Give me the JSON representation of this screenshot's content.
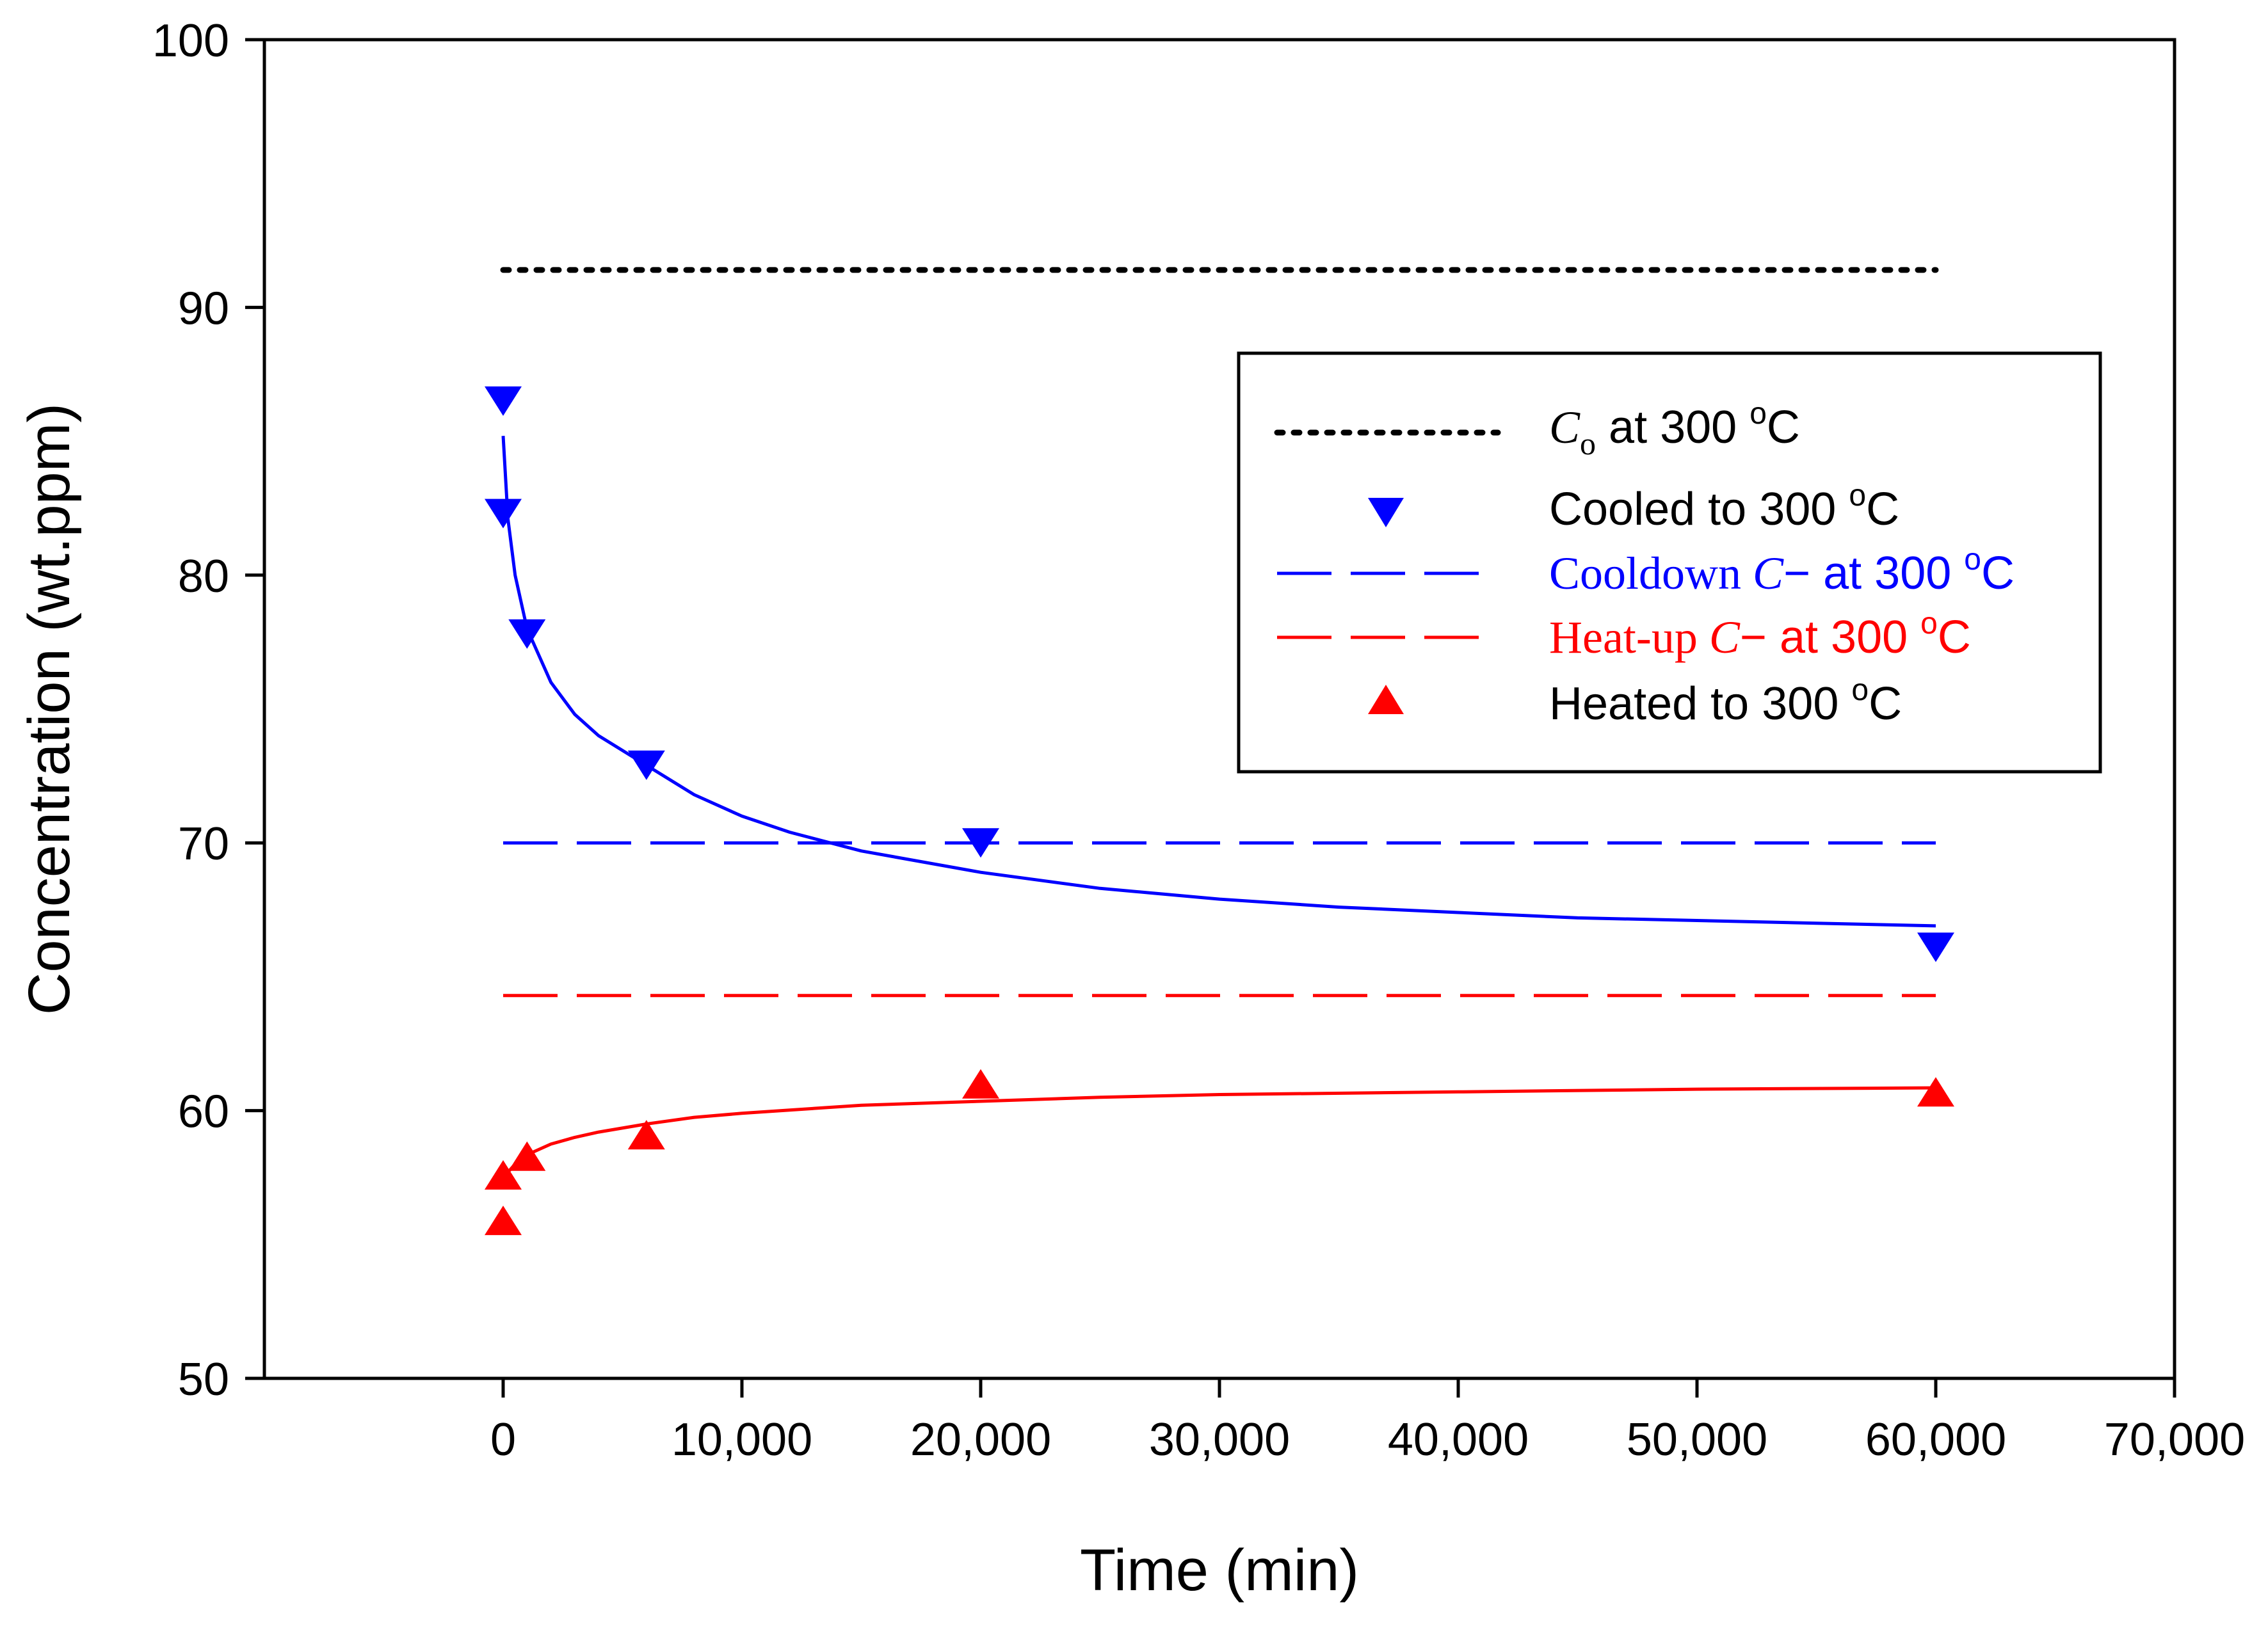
{
  "chart_data": {
    "type": "scatter",
    "title": "",
    "xlabel": "Time (min)",
    "ylabel": "Concentration (wt.ppm)",
    "xlim": [
      -10000,
      70000
    ],
    "ylim": [
      50,
      100
    ],
    "xticks": [
      0,
      10000,
      20000,
      30000,
      40000,
      50000,
      60000,
      70000
    ],
    "xtick_labels": [
      "0",
      "10,000",
      "20,000",
      "30,000",
      "40,000",
      "50,000",
      "60,000",
      "70,000"
    ],
    "yticks": [
      50,
      60,
      70,
      80,
      90,
      100
    ],
    "ytick_labels": [
      "50",
      "60",
      "70",
      "80",
      "90",
      "100"
    ],
    "grid": false,
    "legend_position": "upper-right",
    "series": [
      {
        "name": "C_o at 300 °C",
        "kind": "hline",
        "style": "dotted",
        "color": "#000000",
        "y": 91.4,
        "x_range": [
          0,
          60000
        ],
        "legend": {
          "symbol": "C",
          "sub": "o",
          "text": " at 300 ",
          "unit": "C"
        }
      },
      {
        "name": "Cooled to 300 °C",
        "kind": "scatter",
        "marker": "triangle-down",
        "color": "#0000ff",
        "x": [
          0,
          0,
          1000,
          6000,
          20000,
          60000
        ],
        "y": [
          86.5,
          82.3,
          77.8,
          72.9,
          70.0,
          66.1
        ],
        "legend": {
          "text": "Cooled to 300 ",
          "unit": "C"
        }
      },
      {
        "name": "Cooldown fit",
        "kind": "curve",
        "color": "#0000ff",
        "x": [
          0,
          200,
          500,
          1000,
          2000,
          3000,
          4000,
          6000,
          8000,
          10000,
          12000,
          15000,
          20000,
          25000,
          30000,
          35000,
          40000,
          45000,
          50000,
          55000,
          60000
        ],
        "y": [
          85.2,
          82.1,
          80.0,
          78.0,
          76.0,
          74.8,
          74.0,
          72.9,
          71.8,
          71.0,
          70.4,
          69.7,
          68.9,
          68.3,
          67.9,
          67.6,
          67.4,
          67.2,
          67.1,
          67.0,
          66.9
        ]
      },
      {
        "name": "Cooldown C− at 300 °C",
        "kind": "hline",
        "style": "dashed",
        "color": "#0000ff",
        "y": 70.0,
        "x_range": [
          0,
          60000
        ],
        "legend": {
          "prefix": "Cooldown ",
          "symbol": "C",
          "text": "− at 300 ",
          "unit": "C"
        }
      },
      {
        "name": "Heat-up C− at 300 °C",
        "kind": "hline",
        "style": "dashed",
        "color": "#ff0000",
        "y": 64.3,
        "x_range": [
          0,
          60000
        ],
        "legend": {
          "prefix": "Heat-up ",
          "symbol": "C",
          "text": "− at 300 ",
          "unit": "C"
        }
      },
      {
        "name": "Heated to 300 °C",
        "kind": "scatter",
        "marker": "triangle-up",
        "color": "#ff0000",
        "x": [
          0,
          0,
          1000,
          6000,
          20000,
          60000
        ],
        "y": [
          55.9,
          57.6,
          58.3,
          59.1,
          61.0,
          60.7
        ],
        "legend": {
          "text": "Heated to 300 ",
          "unit": "C"
        }
      },
      {
        "name": "Heat-up fit",
        "kind": "curve",
        "color": "#ff0000",
        "x": [
          0,
          200,
          500,
          1000,
          2000,
          3000,
          4000,
          6000,
          8000,
          10000,
          15000,
          20000,
          25000,
          30000,
          40000,
          50000,
          60000
        ],
        "y": [
          57.3,
          57.7,
          58.0,
          58.35,
          58.75,
          59.0,
          59.2,
          59.5,
          59.75,
          59.9,
          60.2,
          60.35,
          60.5,
          60.6,
          60.7,
          60.8,
          60.85
        ]
      }
    ]
  }
}
